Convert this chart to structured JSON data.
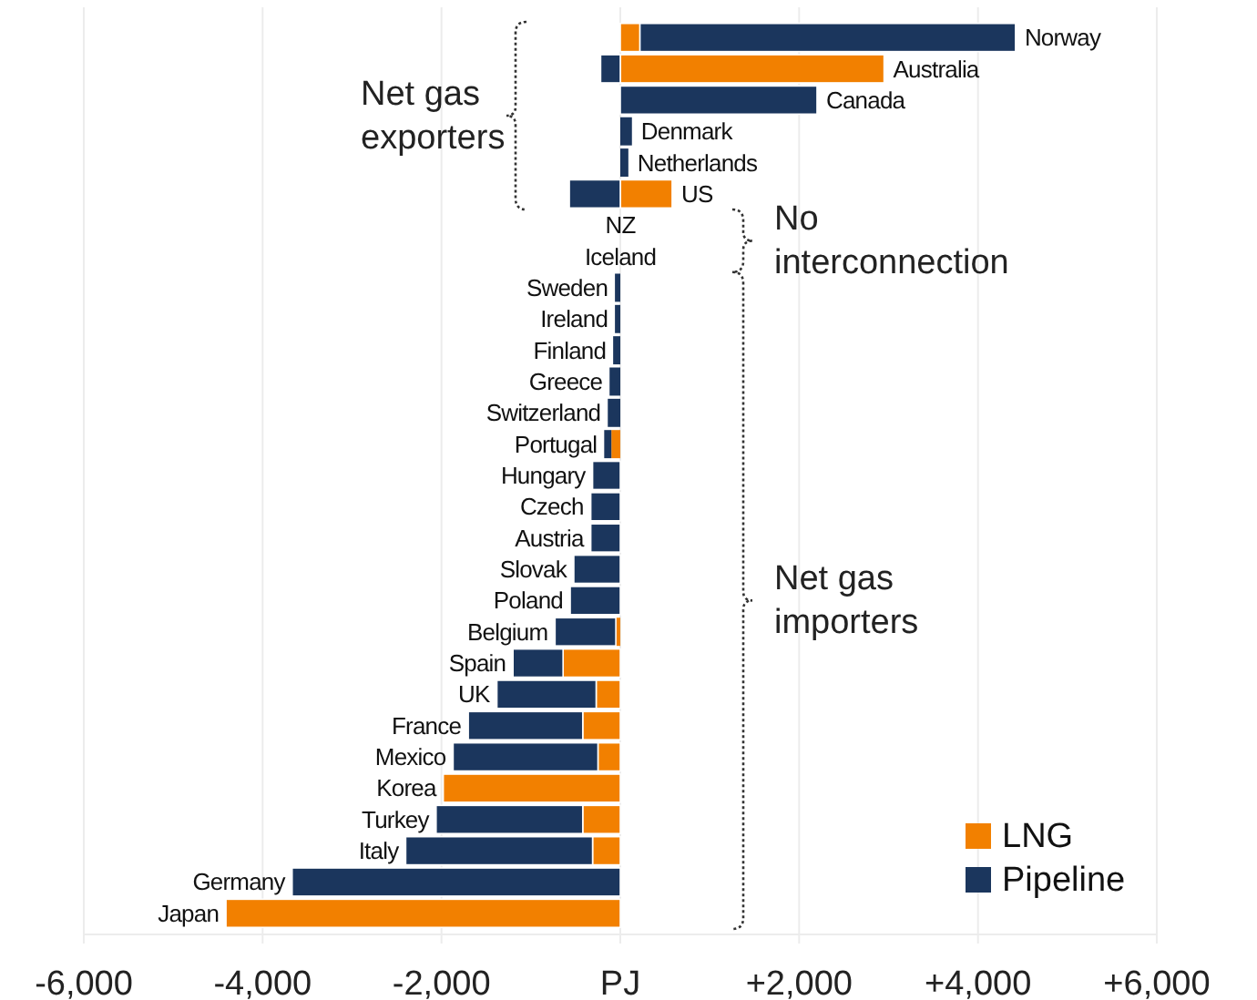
{
  "chart_data": {
    "type": "bar",
    "orientation": "horizontal",
    "stacked": true,
    "categories": [
      "Norway",
      "Australia",
      "Canada",
      "Denmark",
      "Netherlands",
      "US",
      "NZ",
      "Iceland",
      "Sweden",
      "Ireland",
      "Finland",
      "Greece",
      "Switzerland",
      "Portugal",
      "Hungary",
      "Czech",
      "Austria",
      "Slovak",
      "Poland",
      "Belgium",
      "Spain",
      "UK",
      "France",
      "Mexico",
      "Korea",
      "Turkey",
      "Italy",
      "Germany",
      "Japan"
    ],
    "series": [
      {
        "name": "LNG",
        "color": "#f28000",
        "values": [
          220,
          2950,
          null,
          null,
          null,
          580,
          0,
          0,
          null,
          null,
          null,
          null,
          null,
          -100,
          null,
          null,
          null,
          null,
          null,
          -50,
          -640,
          -270,
          -420,
          -250,
          -1980,
          -420,
          -310,
          null,
          -4410
        ]
      },
      {
        "name": "Pipeline",
        "color": "#1b365d",
        "values": [
          4200,
          -220,
          2200,
          130,
          90,
          -570,
          0,
          0,
          -60,
          -60,
          -80,
          -120,
          -140,
          -80,
          -310,
          -330,
          -330,
          -520,
          -560,
          -680,
          -560,
          -1110,
          -1280,
          -1620,
          null,
          -1640,
          -2090,
          -3670,
          null
        ]
      }
    ],
    "xlim": [
      -6000,
      6000
    ],
    "xticks": [
      {
        "value": -6000,
        "label": "-6,000"
      },
      {
        "value": -4000,
        "label": "-4,000"
      },
      {
        "value": -2000,
        "label": "-2,000"
      },
      {
        "value": 0,
        "label": "PJ"
      },
      {
        "value": 2000,
        "label": "+2,000"
      },
      {
        "value": 4000,
        "label": "+4,000"
      },
      {
        "value": 6000,
        "label": "+6,000"
      }
    ],
    "grid": "x",
    "legend": "bottom right",
    "annotations": [
      "Net gas exporters",
      "No interconnection",
      "Net gas importers"
    ]
  }
}
